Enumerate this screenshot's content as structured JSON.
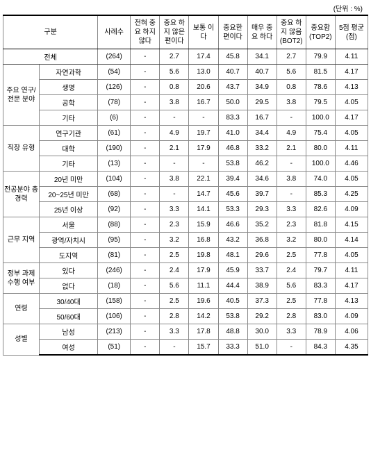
{
  "unit_label": "(단위 : %)",
  "headers": {
    "category": "구분",
    "n": "사례수",
    "c1": "전혀\n중요\n하지\n않다",
    "c2": "중요\n하지\n않은\n편이다",
    "c3": "보통\n이다",
    "c4": "중요한\n편이다",
    "c5": "매우\n중요\n하다",
    "bot2": "중요\n하지\n않음\n(BOT2)",
    "top2": "중요함\n(TOP2)",
    "mean": "5점\n평균\n(점)"
  },
  "total": {
    "label": "전체",
    "cells": [
      "(264)",
      "-",
      "2.7",
      "17.4",
      "45.8",
      "34.1",
      "2.7",
      "79.9",
      "4.11"
    ]
  },
  "groups": [
    {
      "label": "주요\n연구/전문\n분야",
      "rows": [
        {
          "label": "자연과학",
          "cells": [
            "(54)",
            "-",
            "5.6",
            "13.0",
            "40.7",
            "40.7",
            "5.6",
            "81.5",
            "4.17"
          ]
        },
        {
          "label": "생명",
          "cells": [
            "(126)",
            "-",
            "0.8",
            "20.6",
            "43.7",
            "34.9",
            "0.8",
            "78.6",
            "4.13"
          ]
        },
        {
          "label": "공학",
          "cells": [
            "(78)",
            "-",
            "3.8",
            "16.7",
            "50.0",
            "29.5",
            "3.8",
            "79.5",
            "4.05"
          ]
        },
        {
          "label": "기타",
          "cells": [
            "(6)",
            "-",
            "-",
            "-",
            "83.3",
            "16.7",
            "-",
            "100.0",
            "4.17"
          ]
        }
      ]
    },
    {
      "label": "직장 유형",
      "rows": [
        {
          "label": "연구기관",
          "cells": [
            "(61)",
            "-",
            "4.9",
            "19.7",
            "41.0",
            "34.4",
            "4.9",
            "75.4",
            "4.05"
          ]
        },
        {
          "label": "대학",
          "cells": [
            "(190)",
            "-",
            "2.1",
            "17.9",
            "46.8",
            "33.2",
            "2.1",
            "80.0",
            "4.11"
          ]
        },
        {
          "label": "기타",
          "cells": [
            "(13)",
            "-",
            "-",
            "-",
            "53.8",
            "46.2",
            "-",
            "100.0",
            "4.46"
          ]
        }
      ]
    },
    {
      "label": "전공분야\n총 경력",
      "rows": [
        {
          "label": "20년 미만",
          "cells": [
            "(104)",
            "-",
            "3.8",
            "22.1",
            "39.4",
            "34.6",
            "3.8",
            "74.0",
            "4.05"
          ]
        },
        {
          "label": "20~25년 미만",
          "cells": [
            "(68)",
            "-",
            "-",
            "14.7",
            "45.6",
            "39.7",
            "-",
            "85.3",
            "4.25"
          ]
        },
        {
          "label": "25년 이상",
          "cells": [
            "(92)",
            "-",
            "3.3",
            "14.1",
            "53.3",
            "29.3",
            "3.3",
            "82.6",
            "4.09"
          ]
        }
      ]
    },
    {
      "label": "근무 지역",
      "rows": [
        {
          "label": "서울",
          "cells": [
            "(88)",
            "-",
            "2.3",
            "15.9",
            "46.6",
            "35.2",
            "2.3",
            "81.8",
            "4.15"
          ]
        },
        {
          "label": "광역/자치시",
          "cells": [
            "(95)",
            "-",
            "3.2",
            "16.8",
            "43.2",
            "36.8",
            "3.2",
            "80.0",
            "4.14"
          ]
        },
        {
          "label": "도지역",
          "cells": [
            "(81)",
            "-",
            "2.5",
            "19.8",
            "48.1",
            "29.6",
            "2.5",
            "77.8",
            "4.05"
          ]
        }
      ]
    },
    {
      "label": "정부 과제\n수행 여부",
      "rows": [
        {
          "label": "있다",
          "cells": [
            "(246)",
            "-",
            "2.4",
            "17.9",
            "45.9",
            "33.7",
            "2.4",
            "79.7",
            "4.11"
          ]
        },
        {
          "label": "없다",
          "cells": [
            "(18)",
            "-",
            "5.6",
            "11.1",
            "44.4",
            "38.9",
            "5.6",
            "83.3",
            "4.17"
          ]
        }
      ]
    },
    {
      "label": "연령",
      "rows": [
        {
          "label": "30/40대",
          "cells": [
            "(158)",
            "-",
            "2.5",
            "19.6",
            "40.5",
            "37.3",
            "2.5",
            "77.8",
            "4.13"
          ]
        },
        {
          "label": "50/60대",
          "cells": [
            "(106)",
            "-",
            "2.8",
            "14.2",
            "53.8",
            "29.2",
            "2.8",
            "83.0",
            "4.09"
          ]
        }
      ]
    },
    {
      "label": "성별",
      "rows": [
        {
          "label": "남성",
          "cells": [
            "(213)",
            "-",
            "3.3",
            "17.8",
            "48.8",
            "30.0",
            "3.3",
            "78.9",
            "4.06"
          ]
        },
        {
          "label": "여성",
          "cells": [
            "(51)",
            "-",
            "-",
            "15.7",
            "33.3",
            "51.0",
            "-",
            "84.3",
            "4.35"
          ]
        }
      ]
    }
  ]
}
